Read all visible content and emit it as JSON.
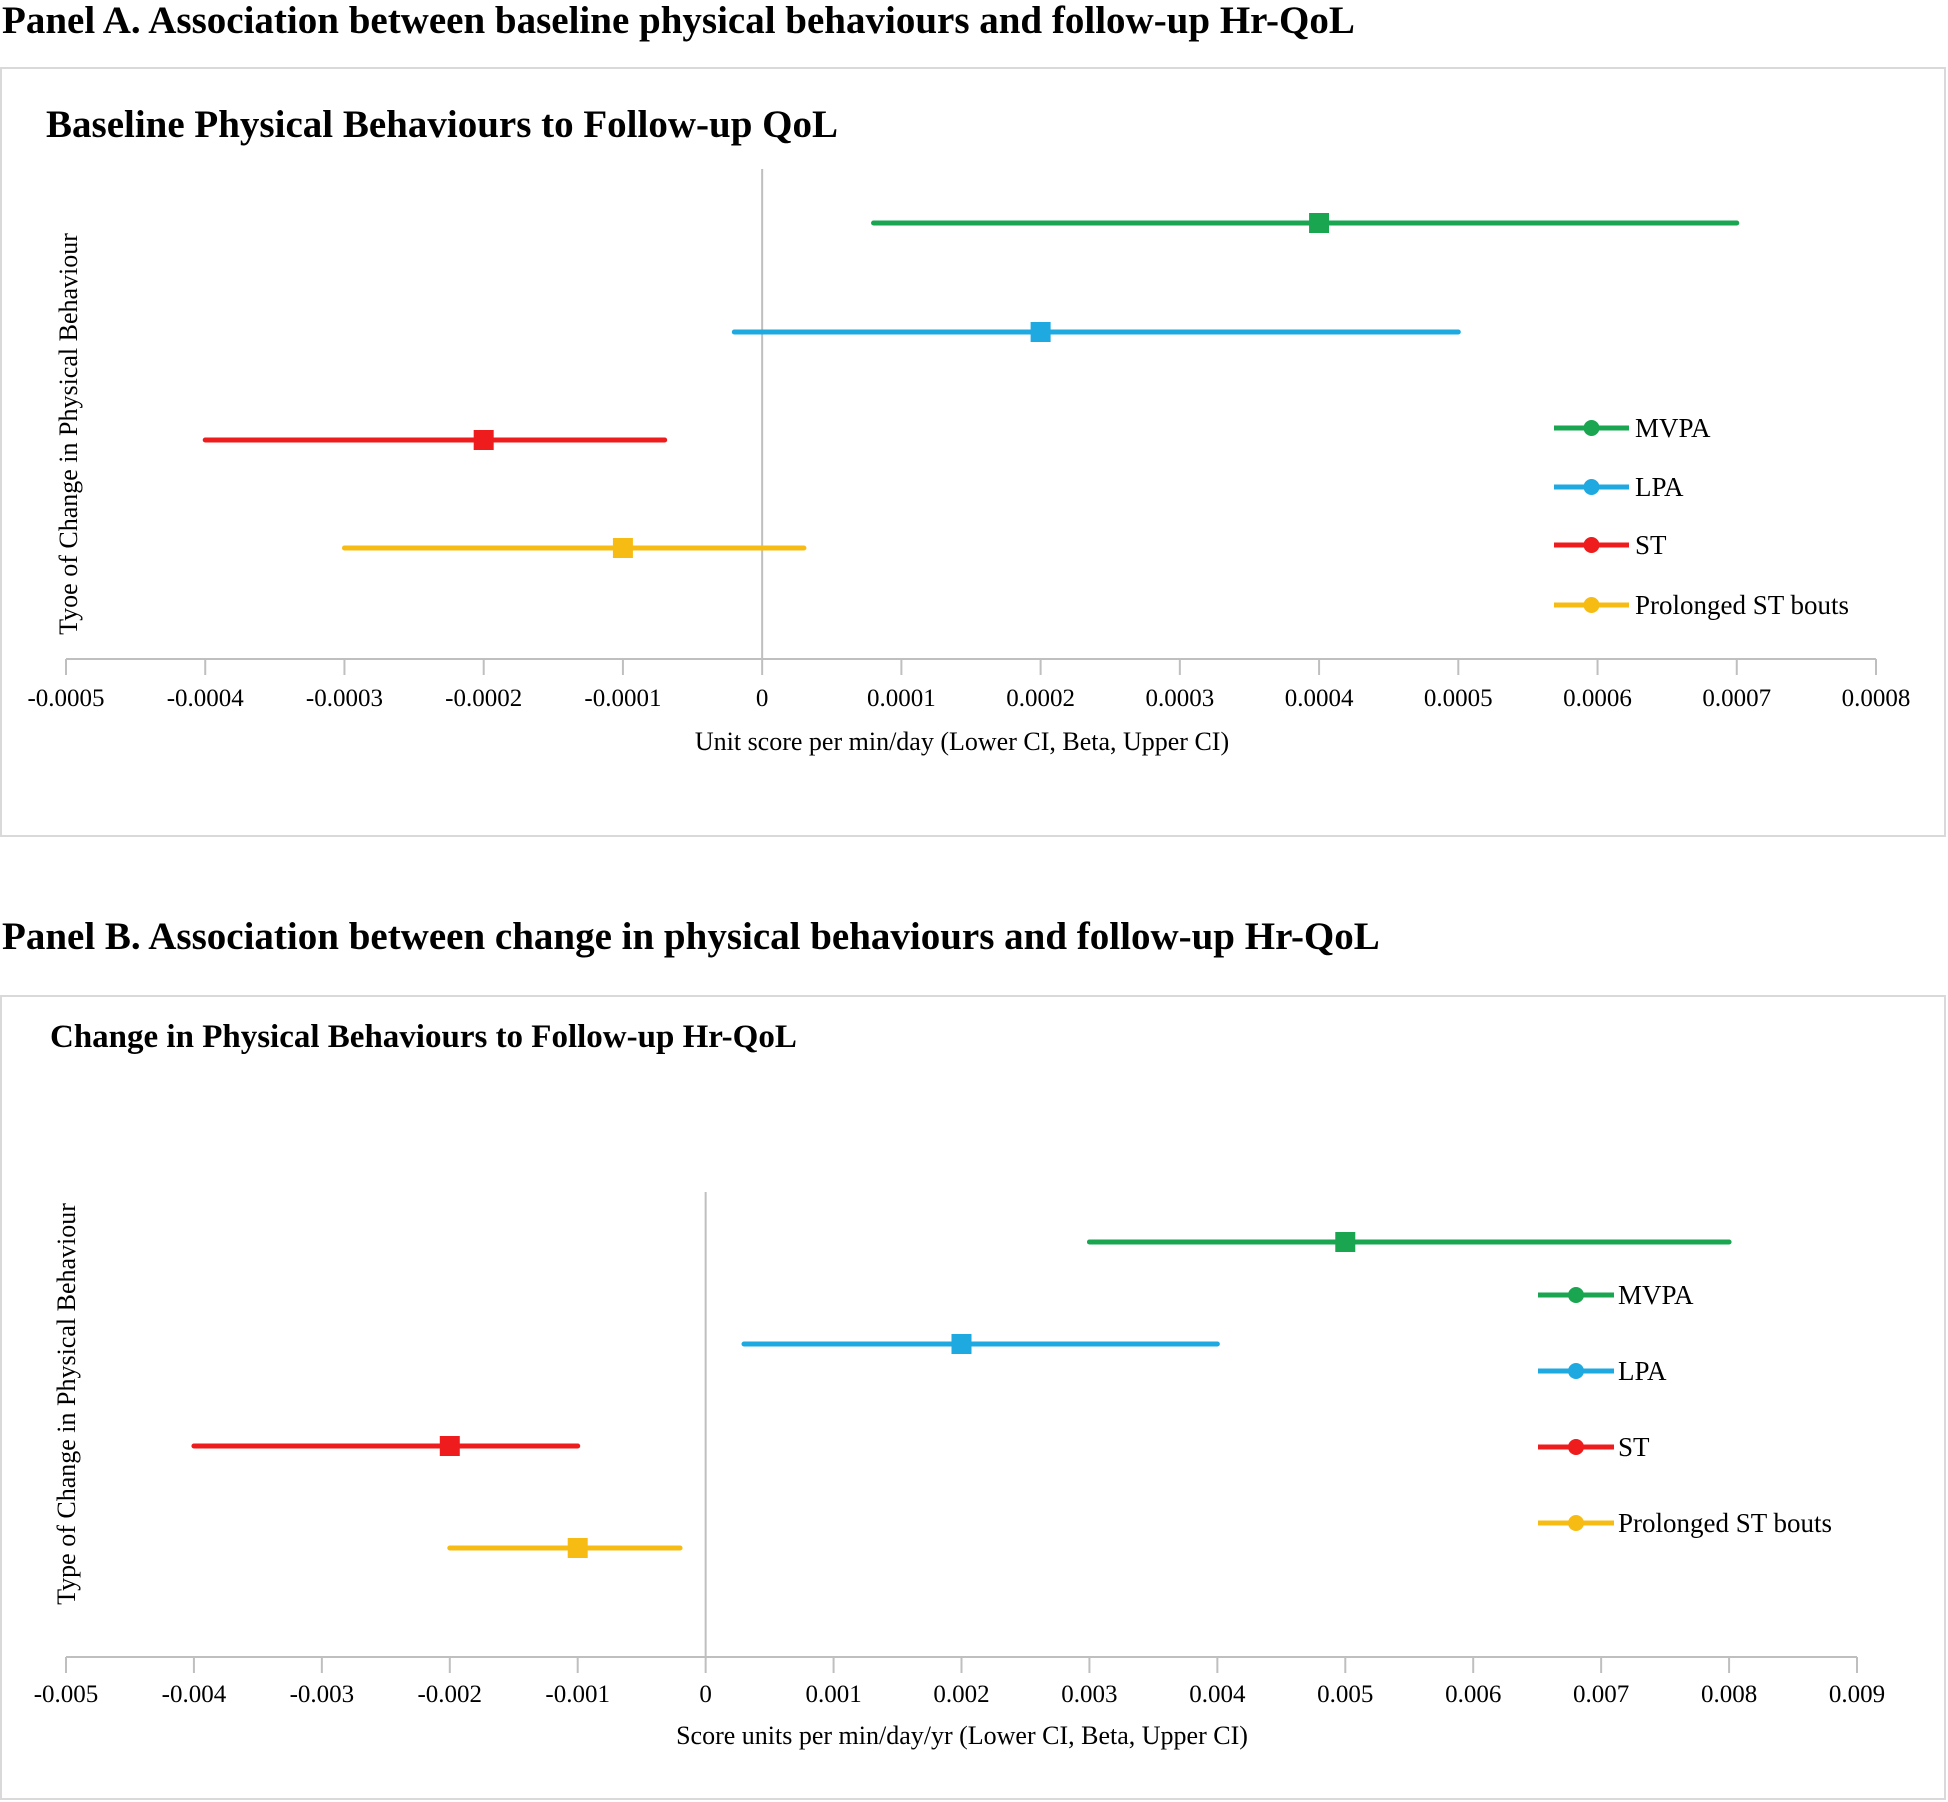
{
  "panels": [
    {
      "heading": "Panel A. Association between baseline physical behaviours and follow-up Hr-QoL",
      "chart_data": {
        "type": "scatter",
        "title": "Baseline Physical Behaviours to Follow-up QoL",
        "xlabel": "Unit score per min/day (Lower CI, Beta, Upper CI)",
        "ylabel": "Tyoe of Change in Physical Behaviour",
        "xlim": [
          -0.0005,
          0.0008
        ],
        "xticks": [
          -0.0005,
          -0.0004,
          -0.0003,
          -0.0002,
          -0.0001,
          0,
          0.0001,
          0.0002,
          0.0003,
          0.0004,
          0.0005,
          0.0006,
          0.0007,
          0.0008
        ],
        "xtick_labels": [
          "-0.0005",
          "-0.0004",
          "-0.0003",
          "-0.0002",
          "-0.0001",
          "0",
          "0.0001",
          "0.0002",
          "0.0003",
          "0.0004",
          "0.0005",
          "0.0006",
          "0.0007",
          "0.0008"
        ],
        "grid": false,
        "legend_position": "right",
        "series": [
          {
            "name": "MVPA",
            "color": "#1aa550",
            "lower": 8e-05,
            "beta": 0.0004,
            "upper": 0.0007
          },
          {
            "name": "LPA",
            "color": "#1ea9e1",
            "lower": -2e-05,
            "beta": 0.0002,
            "upper": 0.0005
          },
          {
            "name": "ST",
            "color": "#ee1c1c",
            "lower": -0.0004,
            "beta": -0.0002,
            "upper": -7e-05
          },
          {
            "name": "Prolonged ST bouts",
            "color": "#f7bc13",
            "lower": -0.0003,
            "beta": -0.0001,
            "upper": 3e-05
          }
        ]
      }
    },
    {
      "heading": "Panel B. Association between change in physical behaviours and follow-up Hr-QoL",
      "chart_data": {
        "type": "scatter",
        "title": "Change in Physical Behaviours to Follow-up  Hr-QoL",
        "xlabel": "Score units per min/day/yr (Lower CI, Beta, Upper CI)",
        "ylabel": "Type of Change in Physical Behaviour",
        "xlim": [
          -0.005,
          0.009
        ],
        "xticks": [
          -0.005,
          -0.004,
          -0.003,
          -0.002,
          -0.001,
          0,
          0.001,
          0.002,
          0.003,
          0.004,
          0.005,
          0.006,
          0.007,
          0.008,
          0.009
        ],
        "xtick_labels": [
          "-0.005",
          "-0.004",
          "-0.003",
          "-0.002",
          "-0.001",
          "0",
          "0.001",
          "0.002",
          "0.003",
          "0.004",
          "0.005",
          "0.006",
          "0.007",
          "0.008",
          "0.009"
        ],
        "grid": false,
        "legend_position": "right",
        "series": [
          {
            "name": "MVPA",
            "color": "#1aa550",
            "lower": 0.003,
            "beta": 0.005,
            "upper": 0.008
          },
          {
            "name": "LPA",
            "color": "#1ea9e1",
            "lower": 0.0003,
            "beta": 0.002,
            "upper": 0.004
          },
          {
            "name": "ST",
            "color": "#ee1c1c",
            "lower": -0.004,
            "beta": -0.002,
            "upper": -0.001
          },
          {
            "name": "Prolonged ST bouts",
            "color": "#f7bc13",
            "lower": -0.002,
            "beta": -0.001,
            "upper": -0.0002
          }
        ]
      }
    }
  ]
}
